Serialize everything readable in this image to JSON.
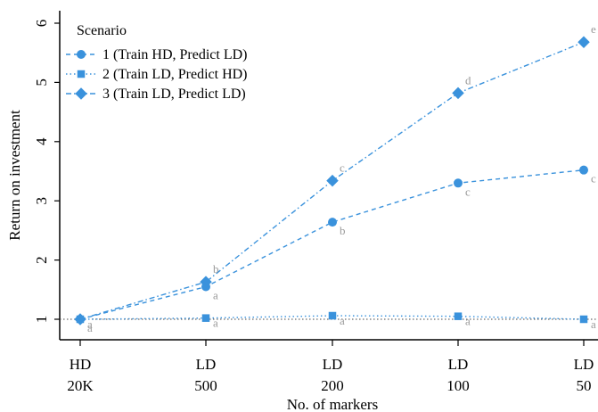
{
  "chart_data": {
    "type": "line",
    "title": "",
    "xlabel": "No. of markers",
    "ylabel": "Return on investment",
    "categories": [
      {
        "line1": "HD",
        "line2": "20K"
      },
      {
        "line1": "LD",
        "line2": "500"
      },
      {
        "line1": "LD",
        "line2": "200"
      },
      {
        "line1": "LD",
        "line2": "100"
      },
      {
        "line1": "LD",
        "line2": "50"
      }
    ],
    "yticks": [
      1,
      2,
      3,
      4,
      5,
      6
    ],
    "ylim": [
      0.6,
      6.3
    ],
    "grid": false,
    "legend": {
      "title": "Scenario",
      "placement": "top-left"
    },
    "reference_line": {
      "y": 1,
      "style": "dotted"
    },
    "series": [
      {
        "name": "1 (Train HD, Predict LD)",
        "marker": "circle",
        "dash": "dashed",
        "color": "#3a92dc",
        "values": [
          1.0,
          1.55,
          2.64,
          3.3,
          3.52
        ],
        "annotations": [
          "a",
          "a",
          "b",
          "c",
          "c"
        ]
      },
      {
        "name": "2 (Train LD, Predict HD)",
        "marker": "square",
        "dash": "dotted",
        "color": "#3a92dc",
        "values": [
          1.0,
          1.02,
          1.06,
          1.05,
          1.0
        ],
        "annotations": [
          "a",
          "a",
          "a",
          "a",
          "a"
        ]
      },
      {
        "name": "3 (Train LD, Predict LD)",
        "marker": "diamond",
        "dash": "dashdot",
        "color": "#3a92dc",
        "values": [
          1.0,
          1.63,
          3.34,
          4.82,
          5.68
        ],
        "annotations": [
          "",
          "b",
          "c",
          "d",
          "e"
        ]
      }
    ]
  }
}
